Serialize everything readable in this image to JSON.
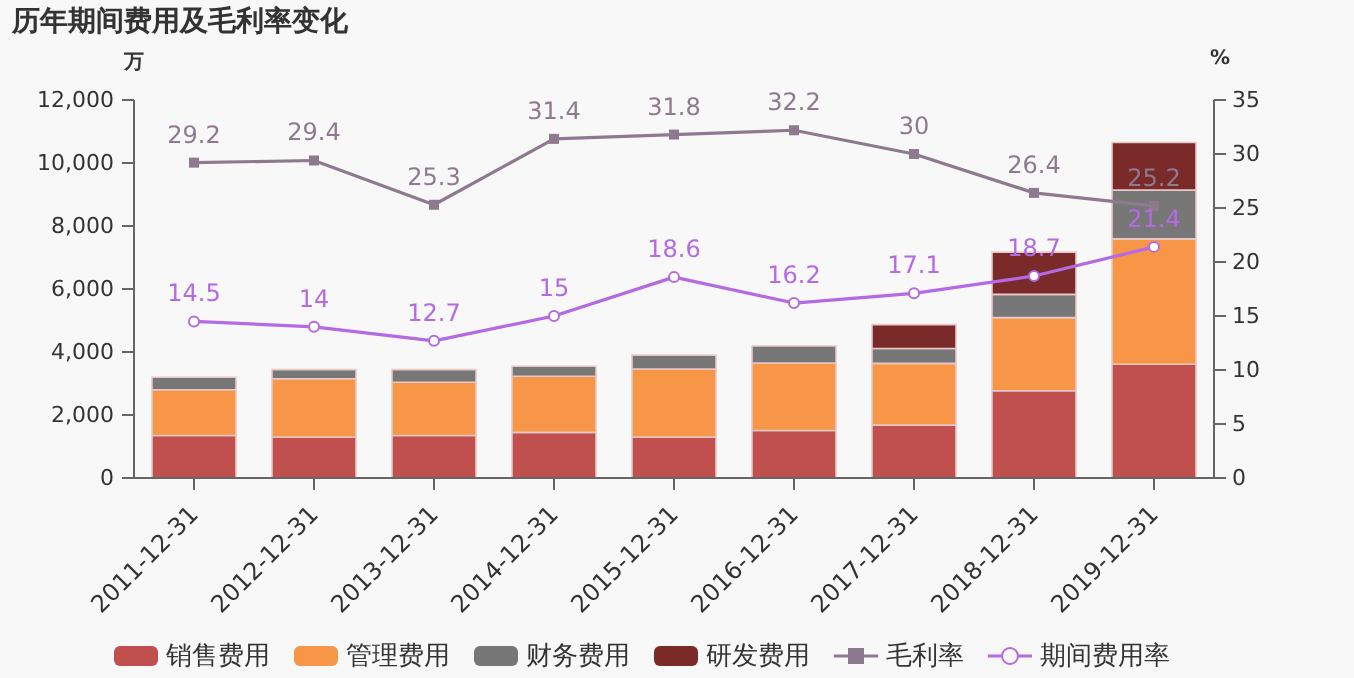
{
  "chart_data": {
    "type": "bar",
    "title": "历年期间费用及毛利率变化",
    "ylabel": "万",
    "y2label": "%",
    "categories": [
      "2011-12-31",
      "2012-12-31",
      "2013-12-31",
      "2014-12-31",
      "2015-12-31",
      "2016-12-31",
      "2017-12-31",
      "2018-12-31",
      "2019-12-31"
    ],
    "stacked": true,
    "grid": false,
    "legend": "bottom",
    "ylim": [
      0,
      12000
    ],
    "yticks": [
      {
        "value": 0,
        "label": "0"
      },
      {
        "value": 2000,
        "label": "2,000"
      },
      {
        "value": 4000,
        "label": "4,000"
      },
      {
        "value": 6000,
        "label": "6,000"
      },
      {
        "value": 8000,
        "label": "8,000"
      },
      {
        "value": 10000,
        "label": "10,000"
      },
      {
        "value": 12000,
        "label": "12,000"
      }
    ],
    "y2lim": [
      0,
      35
    ],
    "y2ticks": [
      0,
      5,
      10,
      15,
      20,
      25,
      30,
      35
    ],
    "series": [
      {
        "name": "销售费用",
        "color": "#c0504d",
        "values": [
          1350,
          1300,
          1350,
          1450,
          1300,
          1510,
          1680,
          2770,
          3610
        ]
      },
      {
        "name": "管理费用",
        "color": "#f79646",
        "values": [
          1450,
          1850,
          1690,
          1780,
          2160,
          2140,
          1960,
          2320,
          3980
        ]
      },
      {
        "name": "财务费用",
        "color": "#777777",
        "values": [
          400,
          290,
          400,
          320,
          440,
          540,
          470,
          740,
          1550
        ]
      },
      {
        "name": "研发费用",
        "color": "#7b2a2a",
        "values": [
          null,
          null,
          null,
          null,
          null,
          null,
          760,
          1340,
          1510
        ]
      },
      {
        "name": "毛利率",
        "type": "line",
        "axis": "y2",
        "color": "#8e7a8e",
        "marker": "square",
        "data_labels": true,
        "values": [
          29.2,
          29.4,
          25.3,
          31.4,
          31.8,
          32.2,
          30,
          26.4,
          25.2
        ]
      },
      {
        "name": "期间费用率",
        "type": "line",
        "axis": "y2",
        "color": "#b36ae2",
        "marker": "circle",
        "data_labels": true,
        "values": [
          14.5,
          14,
          12.7,
          15,
          18.6,
          16.2,
          17.1,
          18.7,
          21.4
        ]
      }
    ]
  }
}
